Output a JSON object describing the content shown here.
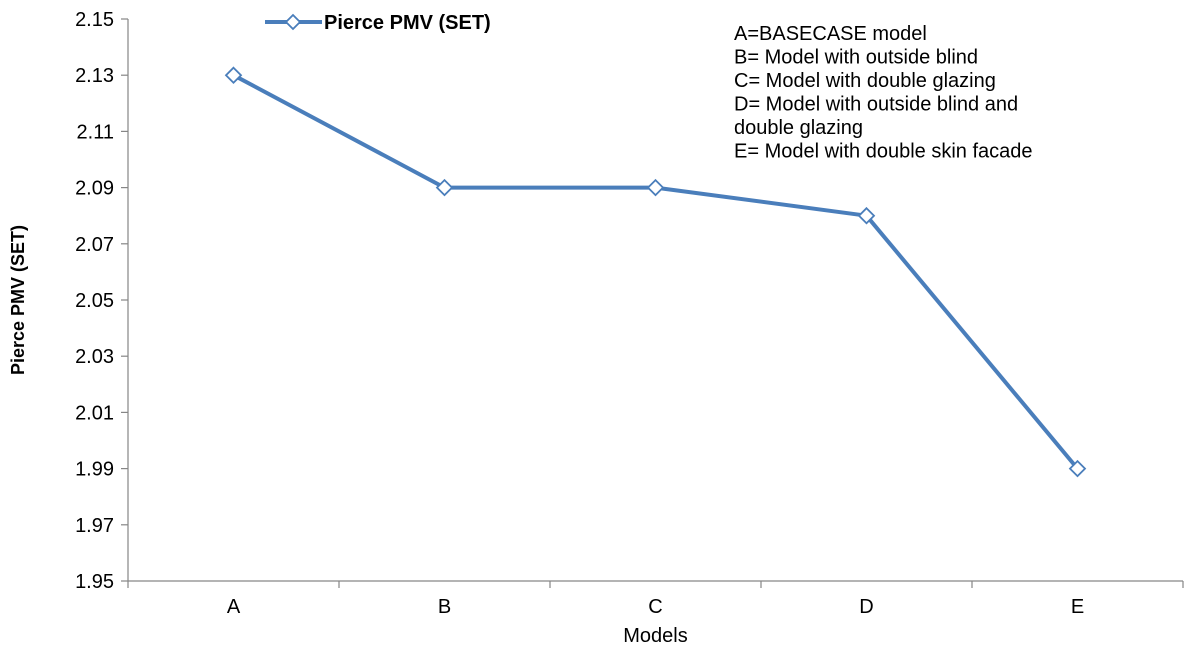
{
  "chart_data": {
    "type": "line",
    "categories": [
      "A",
      "B",
      "C",
      "D",
      "E"
    ],
    "series": [
      {
        "name": "Pierce PMV (SET)",
        "values": [
          2.13,
          2.09,
          2.09,
          2.08,
          1.99
        ],
        "color": "#4a7ebb",
        "marker": "diamond-open"
      }
    ],
    "xlabel": "Models",
    "ylabel": "Pierce PMV (SET)",
    "ylim": [
      1.95,
      2.15
    ],
    "y_ticks": [
      "1.95",
      "1.97",
      "1.99",
      "2.01",
      "2.03",
      "2.05",
      "2.07",
      "2.09",
      "2.11",
      "2.13",
      "2.15"
    ],
    "grid": false,
    "legend_position": "top",
    "annotations": [
      "A=BASECASE  model",
      "B= Model with outside blind",
      "C= Model with double  glazing",
      "D= Model with outside blind  and",
      "double glazing",
      "E= Model with double  skin facade"
    ]
  }
}
